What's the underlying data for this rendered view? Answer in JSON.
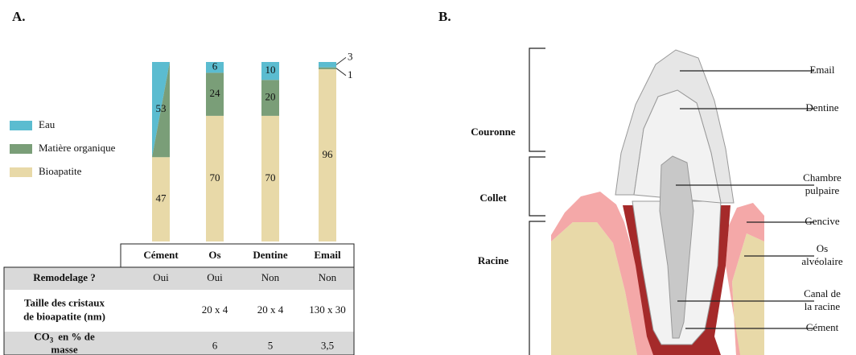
{
  "panel_a": {
    "label": "A."
  },
  "chart_data": {
    "type": "bar",
    "stacked": true,
    "categories": [
      "Cément",
      "Os",
      "Dentine",
      "Email"
    ],
    "ylim": [
      0,
      100
    ],
    "series": [
      {
        "name": "Eau",
        "color": "#5bbcd0",
        "values": [
          null,
          6,
          10,
          3
        ]
      },
      {
        "name": "Matière organique",
        "color": "#7a9e78",
        "values": [
          null,
          24,
          20,
          1
        ]
      },
      {
        "name": "Bioapatite",
        "color": "#e8d9a8",
        "values": [
          47,
          70,
          70,
          96
        ]
      }
    ],
    "combined": {
      "values": [
        53,
        null,
        null,
        null
      ]
    }
  },
  "table": {
    "rows": [
      {
        "label": [
          "Remodelage ?"
        ],
        "values": [
          "Oui",
          "Oui",
          "Non",
          "Non"
        ]
      },
      {
        "label": [
          "Taille des cristaux",
          "de bioapatite (nm)"
        ],
        "values": [
          null,
          "20 x 4",
          "20 x 4",
          "130 x 30"
        ]
      },
      {
        "label_co": {
          "main": "CO",
          "sub": "3",
          "rest": "en % de",
          "line2": "masse"
        },
        "values": [
          null,
          "6",
          "5",
          "3,5"
        ]
      }
    ]
  },
  "panel_b": {
    "label": "B.",
    "regions": [
      "Couronne",
      "Collet",
      "Racine"
    ],
    "parts": [
      [
        "Email"
      ],
      [
        "Dentine"
      ],
      [
        "Chambre",
        "pulpaire"
      ],
      [
        "Gencive"
      ],
      [
        "Os",
        "alvéolaire"
      ],
      [
        "Canal de",
        "la racine"
      ],
      [
        "Cément"
      ]
    ]
  }
}
